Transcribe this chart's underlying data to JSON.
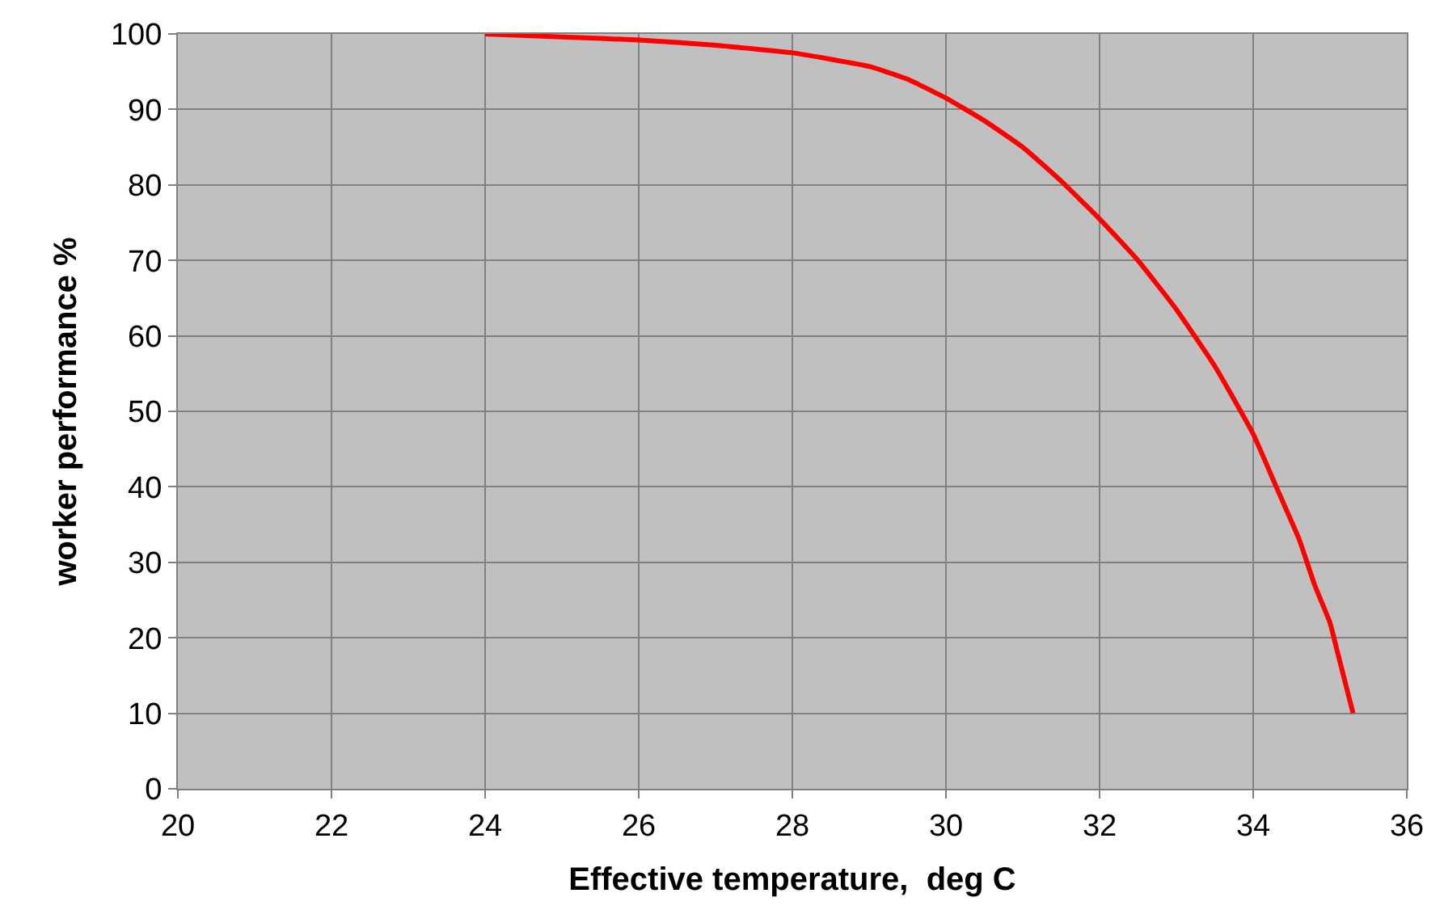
{
  "chart_data": {
    "type": "line",
    "xlabel": "Effective temperature,  deg C",
    "ylabel": "worker performance %",
    "series": [
      {
        "color": "#ff0000",
        "x": [
          24,
          25,
          26,
          27,
          28,
          29,
          29.5,
          30,
          30.5,
          31,
          31.5,
          32,
          32.5,
          33,
          33.5,
          34,
          34.3,
          34.6,
          34.8,
          35,
          35.1,
          35.2,
          35.3
        ],
        "values": [
          100,
          99.6,
          99.2,
          98.5,
          97.5,
          95.7,
          94,
          91.5,
          88.5,
          85,
          80.5,
          75.5,
          70,
          63.5,
          56,
          47,
          40,
          33,
          27,
          22,
          18,
          14,
          10
        ]
      }
    ],
    "xlim": [
      20,
      36
    ],
    "xticks": [
      20,
      22,
      24,
      26,
      28,
      30,
      32,
      34,
      36
    ],
    "ylim": [
      0,
      100
    ],
    "yticks": [
      0,
      10,
      20,
      30,
      40,
      50,
      60,
      70,
      80,
      90,
      100
    ],
    "grid": true,
    "legend": false,
    "marker": "none",
    "line_style": "solid"
  }
}
